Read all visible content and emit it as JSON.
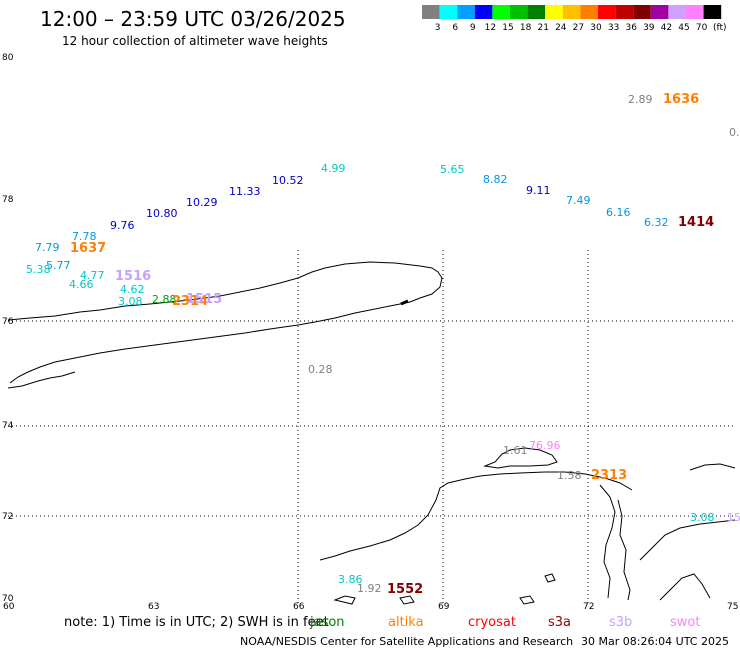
{
  "header": {
    "title": "12:00 – 23:59 UTC 03/26/2025",
    "subtitle": "12 hour collection of altimeter wave heights"
  },
  "legend": {
    "unit": "(ft)",
    "bins": [
      {
        "label": "3",
        "color": "#808080"
      },
      {
        "label": "6",
        "color": "#00ffff"
      },
      {
        "label": "9",
        "color": "#00a0ff"
      },
      {
        "label": "12",
        "color": "#0000ff"
      },
      {
        "label": "15",
        "color": "#00ff00"
      },
      {
        "label": "18",
        "color": "#00c000"
      },
      {
        "label": "21",
        "color": "#008000"
      },
      {
        "label": "24",
        "color": "#ffff00"
      },
      {
        "label": "27",
        "color": "#ffc000"
      },
      {
        "label": "30",
        "color": "#ff8000"
      },
      {
        "label": "33",
        "color": "#ff0000"
      },
      {
        "label": "36",
        "color": "#c00000"
      },
      {
        "label": "39",
        "color": "#800000"
      },
      {
        "label": "42",
        "color": "#a000a0"
      },
      {
        "label": "45",
        "color": "#d0a0ff"
      },
      {
        "label": "70",
        "color": "#ff80ff"
      },
      {
        "label": "",
        "color": "#000000"
      }
    ]
  },
  "axes": {
    "lat_labels": [
      "80",
      "78",
      "76",
      "74",
      "72",
      "70"
    ],
    "lon_labels": [
      "60",
      "63",
      "66",
      "69",
      "72",
      "75"
    ]
  },
  "observations": [
    {
      "text": "2.89",
      "color": "#808080"
    },
    {
      "text": "1636",
      "color": "#ff8000",
      "big": true
    },
    {
      "text": "0.",
      "color": "#808080"
    },
    {
      "text": "4.99",
      "color": "#00c8c8"
    },
    {
      "text": "5.65",
      "color": "#00c8c8"
    },
    {
      "text": "10.52",
      "color": "#0000c0"
    },
    {
      "text": "8.82",
      "color": "#0096e6"
    },
    {
      "text": "11.33",
      "color": "#0000c0"
    },
    {
      "text": "9.11",
      "color": "#0000c0"
    },
    {
      "text": "10.29",
      "color": "#0000c0"
    },
    {
      "text": "7.49",
      "color": "#0096e6"
    },
    {
      "text": "10.80",
      "color": "#0000c0"
    },
    {
      "text": "6.16",
      "color": "#0096e6"
    },
    {
      "text": "9.76",
      "color": "#0000c0"
    },
    {
      "text": "6.32",
      "color": "#0096e6"
    },
    {
      "text": "1414",
      "color": "#800000",
      "big": true
    },
    {
      "text": "7.78",
      "color": "#0096e6"
    },
    {
      "text": "7.79",
      "color": "#0096e6"
    },
    {
      "text": "1637",
      "color": "#ff8000",
      "big": true
    },
    {
      "text": "5.77",
      "color": "#0096e6"
    },
    {
      "text": "5.38",
      "color": "#00c8c8"
    },
    {
      "text": "4.77",
      "color": "#00c8c8"
    },
    {
      "text": "1516",
      "color": "#c8a0ff",
      "big": true
    },
    {
      "text": "4.66",
      "color": "#00c8c8"
    },
    {
      "text": "4.62",
      "color": "#00c8c8"
    },
    {
      "text": "3.08",
      "color": "#00c8c8"
    },
    {
      "text": "2.88",
      "color": "#00a000"
    },
    {
      "text": "2314",
      "color": "#ff8000",
      "big": true
    },
    {
      "text": "1515",
      "color": "#c8a0ff",
      "big": true
    },
    {
      "text": "0.28",
      "color": "#808080"
    },
    {
      "text": "1.61",
      "color": "#808080"
    },
    {
      "text": "76.96",
      "color": "#ff80ff"
    },
    {
      "text": "1.58",
      "color": "#808080"
    },
    {
      "text": "2313",
      "color": "#ff8000",
      "big": true
    },
    {
      "text": "3.08",
      "color": "#00c8c8"
    },
    {
      "text": "15",
      "color": "#c8a0ff"
    },
    {
      "text": "3.86",
      "color": "#00c8c8"
    },
    {
      "text": "1.92",
      "color": "#808080"
    },
    {
      "text": "1552",
      "color": "#800000",
      "big": true
    }
  ],
  "footer": {
    "note": "note:  1) Time is in UTC; 2) SWH is in feet",
    "satellites": [
      {
        "name": "jason",
        "color": "#008000"
      },
      {
        "name": "altika",
        "color": "#ff8000"
      },
      {
        "name": "cryosat",
        "color": "#ff0000"
      },
      {
        "name": "s3a",
        "color": "#a00000"
      },
      {
        "name": "s3b",
        "color": "#c8a0ff"
      },
      {
        "name": "swot",
        "color": "#ff80ff"
      }
    ],
    "credit": "NOAA/NESDIS Center for Satellite Applications and Research",
    "timestamp": "30 Mar 08:26:04 UTC 2025"
  }
}
